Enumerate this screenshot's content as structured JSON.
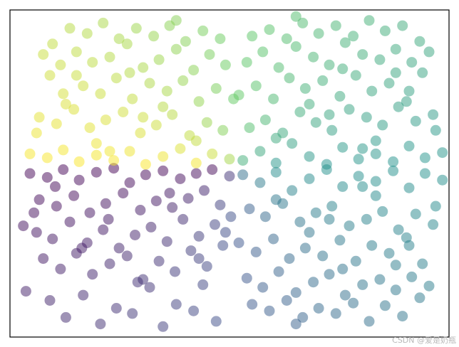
{
  "chart_data": {
    "type": "scatter",
    "title": "",
    "xlabel": "",
    "ylabel": "",
    "xlim": [
      -1.7,
      1.6
    ],
    "ylim": [
      -1.3,
      1.2
    ],
    "grid": false,
    "axes_ticks": false,
    "marker": "circle",
    "alpha": 0.5,
    "colormap": "viridis",
    "color_encoding": "angle",
    "colormap_stops": [
      "#440154",
      "#3b528b",
      "#21918c",
      "#5ec962",
      "#fde725"
    ],
    "series": [
      {
        "x": [
          -1.55,
          -1.42,
          -1.3,
          -1.18,
          -1.05,
          -0.92,
          -0.8,
          -0.68,
          -0.55,
          -0.42,
          -0.3,
          -0.18,
          -0.05,
          -1.48,
          -1.35,
          -1.22,
          -1.1,
          -0.98,
          -0.85,
          -0.72,
          -0.6,
          -0.48,
          -0.36,
          -0.24,
          -0.12,
          -1.6,
          -1.5,
          -1.38,
          -1.25,
          -1.12,
          -1.0,
          -0.88,
          -0.76,
          -0.64,
          -0.52,
          -0.4,
          -0.28,
          -0.16,
          -0.04,
          -1.45,
          -1.32,
          -1.2,
          -1.08,
          -0.95,
          -0.82,
          -0.7,
          -0.58,
          -0.46,
          -0.34,
          -0.22,
          -0.1,
          -1.58,
          -1.4,
          -1.15,
          -0.9,
          -0.65,
          -0.45,
          -0.25,
          -1.28,
          -1.02,
          -0.78,
          -0.55,
          -0.32,
          -0.15,
          -1.52,
          -1.36,
          -1.16,
          -0.96,
          -0.74,
          -0.5,
          -0.28,
          -0.08
        ],
        "y": [
          -0.05,
          -0.08,
          -0.02,
          -0.1,
          -0.04,
          -0.01,
          -0.12,
          -0.06,
          -0.03,
          -0.09,
          -0.05,
          -0.02,
          -0.07,
          -0.25,
          -0.3,
          -0.22,
          -0.35,
          -0.28,
          -0.2,
          -0.33,
          -0.26,
          -0.31,
          -0.24,
          -0.18,
          -0.29,
          -0.45,
          -0.5,
          -0.55,
          -0.42,
          -0.58,
          -0.48,
          -0.62,
          -0.52,
          -0.46,
          -0.57,
          -0.4,
          -0.53,
          -0.44,
          -0.38,
          -0.7,
          -0.78,
          -0.66,
          -0.82,
          -0.74,
          -0.68,
          -0.86,
          -0.72,
          -0.8,
          -0.64,
          -0.76,
          -0.6,
          -0.95,
          -1.02,
          -0.98,
          -1.08,
          -0.92,
          -1.05,
          -0.9,
          -1.15,
          -1.2,
          -1.12,
          -1.22,
          -1.1,
          -1.18,
          -0.35,
          -0.15,
          -0.62,
          -0.4,
          -0.88,
          -0.2,
          -0.7,
          -0.5
        ]
      },
      {
        "x": [
          0.05,
          0.18,
          0.3,
          0.42,
          0.55,
          0.68,
          0.8,
          0.92,
          1.05,
          1.18,
          1.3,
          1.42,
          1.55,
          0.1,
          0.22,
          0.35,
          0.48,
          0.6,
          0.72,
          0.85,
          0.98,
          1.1,
          1.22,
          1.35,
          1.48,
          0.02,
          0.15,
          0.28,
          0.4,
          0.52,
          0.65,
          0.78,
          0.9,
          1.02,
          1.15,
          1.28,
          1.4,
          0.08,
          0.2,
          0.32,
          0.45,
          0.58,
          0.7,
          0.82,
          0.95,
          1.08,
          1.2,
          1.32,
          1.45,
          0.12,
          0.25,
          0.38,
          0.5,
          0.62,
          0.75,
          0.88,
          1.0,
          1.12,
          1.25,
          1.38,
          0.3,
          0.55,
          0.8,
          1.05,
          1.3,
          0.45,
          0.7,
          0.95,
          1.2,
          1.5
        ],
        "y": [
          -0.06,
          -0.12,
          -0.04,
          -0.18,
          -0.09,
          -0.02,
          -0.15,
          -0.07,
          -0.11,
          -0.03,
          -0.16,
          -0.05,
          -0.1,
          -0.32,
          -0.38,
          -0.28,
          -0.42,
          -0.35,
          -0.3,
          -0.45,
          -0.4,
          -0.34,
          -0.48,
          -0.36,
          -0.44,
          -0.58,
          -0.65,
          -0.55,
          -0.7,
          -0.62,
          -0.68,
          -0.56,
          -0.72,
          -0.6,
          -0.66,
          -0.54,
          -0.74,
          -0.85,
          -0.92,
          -0.8,
          -0.96,
          -0.88,
          -0.82,
          -0.98,
          -0.9,
          -0.86,
          -0.94,
          -0.84,
          -0.91,
          -1.05,
          -1.1,
          -1.02,
          -1.15,
          -1.08,
          -1.12,
          -1.04,
          -1.18,
          -1.06,
          -1.14,
          -1.0,
          -0.25,
          -0.5,
          -0.78,
          -0.22,
          -0.6,
          -1.2,
          -0.4,
          -0.15,
          -0.75,
          -0.3
        ]
      },
      {
        "x": [
          0.05,
          0.18,
          0.3,
          0.42,
          0.55,
          0.68,
          0.8,
          0.92,
          1.05,
          1.18,
          1.3,
          1.42,
          1.55,
          0.1,
          0.22,
          0.35,
          0.48,
          0.6,
          0.72,
          0.85,
          0.98,
          1.1,
          1.22,
          1.35,
          1.48,
          0.02,
          0.15,
          0.28,
          0.4,
          0.52,
          0.65,
          0.78,
          0.9,
          1.02,
          1.15,
          1.28,
          1.4,
          0.08,
          0.2,
          0.32,
          0.45,
          0.58,
          0.7,
          0.82,
          0.95,
          1.08,
          1.2,
          1.32,
          1.45,
          0.12,
          0.25,
          0.38,
          0.5,
          0.62,
          0.75,
          0.88,
          1.0,
          1.12,
          1.25,
          1.38,
          0.3,
          0.55,
          0.8,
          1.05,
          1.3,
          0.45,
          0.7,
          0.95,
          1.2,
          1.5
        ],
        "y": [
          0.05,
          0.12,
          0.03,
          0.18,
          0.08,
          0.02,
          0.15,
          0.06,
          0.1,
          0.04,
          0.16,
          0.07,
          0.11,
          0.3,
          0.36,
          0.26,
          0.42,
          0.34,
          0.28,
          0.44,
          0.38,
          0.32,
          0.46,
          0.35,
          0.4,
          0.55,
          0.62,
          0.52,
          0.68,
          0.6,
          0.66,
          0.54,
          0.7,
          0.58,
          0.64,
          0.5,
          0.72,
          0.8,
          0.88,
          0.76,
          0.92,
          0.84,
          0.78,
          0.95,
          0.86,
          0.82,
          0.9,
          0.8,
          0.88,
          1.0,
          1.05,
          0.98,
          1.1,
          1.02,
          1.08,
          1.0,
          1.12,
          1.04,
          1.08,
          0.96,
          0.22,
          0.48,
          0.75,
          0.2,
          0.58,
          1.15,
          0.4,
          0.14,
          0.72,
          0.28
        ]
      },
      {
        "x": [
          -0.05,
          -0.18,
          -0.3,
          -0.42,
          -0.55,
          -0.68,
          -0.8,
          -0.92,
          -1.05,
          -1.18,
          -1.3,
          -1.42,
          -1.55,
          -0.1,
          -0.22,
          -0.35,
          -0.48,
          -0.6,
          -0.72,
          -0.85,
          -0.98,
          -1.1,
          -1.22,
          -1.35,
          -1.48,
          -0.02,
          -0.15,
          -0.28,
          -0.4,
          -0.52,
          -0.65,
          -0.78,
          -0.9,
          -1.02,
          -1.15,
          -1.28,
          -1.4,
          -0.08,
          -0.2,
          -0.32,
          -0.45,
          -0.58,
          -0.7,
          -0.82,
          -0.95,
          -1.08,
          -1.2,
          -1.32,
          -1.45,
          -0.12,
          -0.25,
          -0.38,
          -0.5,
          -0.62,
          -0.75,
          -0.88,
          -1.0,
          -1.12,
          -1.25,
          -1.38,
          -0.3,
          -0.55,
          -0.8,
          -1.05,
          -1.3,
          -0.45,
          -0.7,
          -0.95,
          -1.2,
          -1.5
        ],
        "y": [
          0.06,
          0.1,
          0.03,
          0.14,
          0.08,
          0.02,
          0.12,
          0.05,
          0.09,
          0.04,
          0.13,
          0.07,
          0.1,
          0.28,
          0.34,
          0.24,
          0.4,
          0.32,
          0.26,
          0.42,
          0.36,
          0.3,
          0.44,
          0.33,
          0.38,
          0.52,
          0.6,
          0.5,
          0.66,
          0.58,
          0.64,
          0.52,
          0.68,
          0.56,
          0.62,
          0.48,
          0.7,
          0.78,
          0.86,
          0.74,
          0.9,
          0.82,
          0.76,
          0.94,
          0.84,
          0.8,
          0.88,
          0.78,
          0.86,
          0.98,
          1.04,
          0.96,
          1.08,
          1.0,
          1.06,
          0.98,
          1.1,
          1.02,
          1.06,
          0.94,
          0.2,
          0.46,
          0.72,
          0.18,
          0.56,
          1.12,
          0.38,
          0.12,
          0.7,
          0.26
        ]
      }
    ]
  },
  "watermark": "CSDN @爱是奶瓶"
}
